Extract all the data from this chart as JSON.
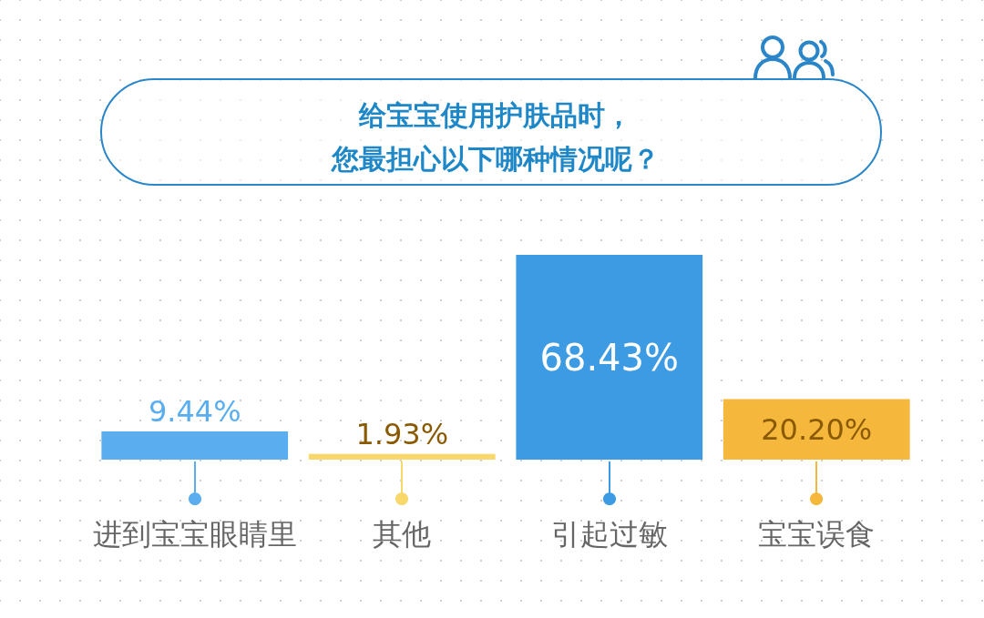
{
  "chart_data": {
    "type": "bar",
    "title": "给宝宝使用护肤品时，您最担心以下哪种情况呢？",
    "categories": [
      "进到宝宝眼睛里",
      "其他",
      "引起过敏",
      "宝宝误食"
    ],
    "values": [
      9.44,
      1.93,
      68.43,
      20.2
    ],
    "value_labels": [
      "9.44%",
      "1.93%",
      "68.43%",
      "20.20%"
    ],
    "colors": [
      "#5aaef0",
      "#f8d86a",
      "#3d9be3",
      "#f6b83c"
    ]
  }
}
